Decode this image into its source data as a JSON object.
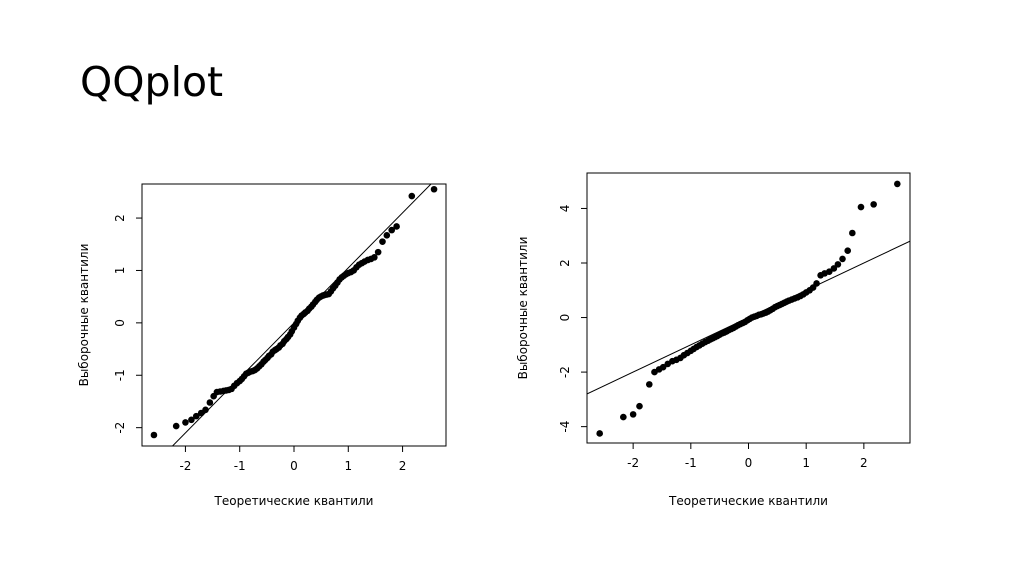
{
  "slide": {
    "title": "QQplot"
  },
  "chart_data": [
    {
      "type": "scatter",
      "title": "",
      "xlabel": "Теоретические квантили",
      "ylabel": "Выборочные квантили",
      "xlim": [
        -2.8,
        2.8
      ],
      "ylim": [
        -2.35,
        2.65
      ],
      "xticks": [
        "-2",
        "-1",
        "0",
        "1",
        "2"
      ],
      "yticks": [
        "-2",
        "-1",
        "0",
        "1",
        "2"
      ],
      "grid": false,
      "reference_line": {
        "slope": 1.05,
        "intercept": 0.0
      },
      "points": [
        [
          -2.58,
          -2.14
        ],
        [
          -2.17,
          -1.97
        ],
        [
          -2.0,
          -1.9
        ],
        [
          -1.89,
          -1.85
        ],
        [
          -1.8,
          -1.78
        ],
        [
          -1.71,
          -1.72
        ],
        [
          -1.63,
          -1.66
        ],
        [
          -1.55,
          -1.52
        ],
        [
          -1.48,
          -1.4
        ],
        [
          -1.42,
          -1.32
        ],
        [
          -1.36,
          -1.31
        ],
        [
          -1.3,
          -1.3
        ],
        [
          -1.25,
          -1.29
        ],
        [
          -1.2,
          -1.28
        ],
        [
          -1.15,
          -1.26
        ],
        [
          -1.1,
          -1.2
        ],
        [
          -1.05,
          -1.15
        ],
        [
          -1.0,
          -1.11
        ],
        [
          -0.96,
          -1.07
        ],
        [
          -0.92,
          -1.02
        ],
        [
          -0.88,
          -0.97
        ],
        [
          -0.84,
          -0.95
        ],
        [
          -0.8,
          -0.93
        ],
        [
          -0.76,
          -0.92
        ],
        [
          -0.72,
          -0.9
        ],
        [
          -0.68,
          -0.87
        ],
        [
          -0.64,
          -0.83
        ],
        [
          -0.6,
          -0.79
        ],
        [
          -0.56,
          -0.74
        ],
        [
          -0.53,
          -0.71
        ],
        [
          -0.49,
          -0.67
        ],
        [
          -0.46,
          -0.63
        ],
        [
          -0.42,
          -0.6
        ],
        [
          -0.39,
          -0.55
        ],
        [
          -0.35,
          -0.52
        ],
        [
          -0.32,
          -0.5
        ],
        [
          -0.28,
          -0.47
        ],
        [
          -0.25,
          -0.43
        ],
        [
          -0.21,
          -0.4
        ],
        [
          -0.18,
          -0.35
        ],
        [
          -0.14,
          -0.31
        ],
        [
          -0.11,
          -0.27
        ],
        [
          -0.07,
          -0.22
        ],
        [
          -0.04,
          -0.16
        ],
        [
          0.0,
          -0.09
        ],
        [
          0.04,
          -0.02
        ],
        [
          0.07,
          0.04
        ],
        [
          0.11,
          0.1
        ],
        [
          0.14,
          0.14
        ],
        [
          0.18,
          0.17
        ],
        [
          0.21,
          0.2
        ],
        [
          0.25,
          0.23
        ],
        [
          0.28,
          0.27
        ],
        [
          0.32,
          0.31
        ],
        [
          0.35,
          0.35
        ],
        [
          0.39,
          0.4
        ],
        [
          0.42,
          0.44
        ],
        [
          0.46,
          0.48
        ],
        [
          0.49,
          0.5
        ],
        [
          0.53,
          0.52
        ],
        [
          0.56,
          0.53
        ],
        [
          0.6,
          0.54
        ],
        [
          0.64,
          0.55
        ],
        [
          0.68,
          0.6
        ],
        [
          0.72,
          0.66
        ],
        [
          0.76,
          0.71
        ],
        [
          0.8,
          0.77
        ],
        [
          0.84,
          0.83
        ],
        [
          0.88,
          0.87
        ],
        [
          0.92,
          0.9
        ],
        [
          0.96,
          0.93
        ],
        [
          1.0,
          0.95
        ],
        [
          1.05,
          0.97
        ],
        [
          1.1,
          1.0
        ],
        [
          1.15,
          1.06
        ],
        [
          1.2,
          1.11
        ],
        [
          1.25,
          1.14
        ],
        [
          1.3,
          1.17
        ],
        [
          1.36,
          1.2
        ],
        [
          1.42,
          1.22
        ],
        [
          1.48,
          1.25
        ],
        [
          1.55,
          1.35
        ],
        [
          1.63,
          1.55
        ],
        [
          1.71,
          1.67
        ],
        [
          1.8,
          1.77
        ],
        [
          1.89,
          1.84
        ],
        [
          2.17,
          2.42
        ],
        [
          2.58,
          2.55
        ]
      ]
    },
    {
      "type": "scatter",
      "title": "",
      "xlabel": "Теоретические квантили",
      "ylabel": "Выборочные квантили",
      "xlim": [
        -2.8,
        2.8
      ],
      "ylim": [
        -4.6,
        5.3
      ],
      "xticks": [
        "-2",
        "-1",
        "0",
        "1",
        "2"
      ],
      "yticks": [
        "-4",
        "-2",
        "0",
        "2",
        "4"
      ],
      "grid": false,
      "reference_line": {
        "slope": 1.0,
        "intercept": 0.0
      },
      "points": [
        [
          -2.58,
          -4.25
        ],
        [
          -2.17,
          -3.65
        ],
        [
          -2.0,
          -3.55
        ],
        [
          -1.89,
          -3.25
        ],
        [
          -1.72,
          -2.45
        ],
        [
          -1.63,
          -2.0
        ],
        [
          -1.55,
          -1.9
        ],
        [
          -1.48,
          -1.82
        ],
        [
          -1.4,
          -1.7
        ],
        [
          -1.32,
          -1.6
        ],
        [
          -1.25,
          -1.55
        ],
        [
          -1.18,
          -1.48
        ],
        [
          -1.12,
          -1.38
        ],
        [
          -1.06,
          -1.3
        ],
        [
          -1.0,
          -1.22
        ],
        [
          -0.95,
          -1.15
        ],
        [
          -0.9,
          -1.08
        ],
        [
          -0.85,
          -1.02
        ],
        [
          -0.8,
          -0.96
        ],
        [
          -0.75,
          -0.9
        ],
        [
          -0.7,
          -0.85
        ],
        [
          -0.66,
          -0.8
        ],
        [
          -0.62,
          -0.76
        ],
        [
          -0.58,
          -0.72
        ],
        [
          -0.54,
          -0.68
        ],
        [
          -0.5,
          -0.63
        ],
        [
          -0.46,
          -0.58
        ],
        [
          -0.42,
          -0.55
        ],
        [
          -0.38,
          -0.51
        ],
        [
          -0.34,
          -0.46
        ],
        [
          -0.3,
          -0.42
        ],
        [
          -0.26,
          -0.38
        ],
        [
          -0.22,
          -0.33
        ],
        [
          -0.18,
          -0.28
        ],
        [
          -0.14,
          -0.24
        ],
        [
          -0.1,
          -0.2
        ],
        [
          -0.06,
          -0.16
        ],
        [
          -0.02,
          -0.1
        ],
        [
          0.02,
          -0.05
        ],
        [
          0.06,
          0.0
        ],
        [
          0.1,
          0.03
        ],
        [
          0.14,
          0.06
        ],
        [
          0.18,
          0.1
        ],
        [
          0.22,
          0.12
        ],
        [
          0.26,
          0.15
        ],
        [
          0.3,
          0.18
        ],
        [
          0.34,
          0.22
        ],
        [
          0.38,
          0.27
        ],
        [
          0.42,
          0.32
        ],
        [
          0.46,
          0.38
        ],
        [
          0.5,
          0.42
        ],
        [
          0.54,
          0.46
        ],
        [
          0.58,
          0.5
        ],
        [
          0.62,
          0.54
        ],
        [
          0.66,
          0.58
        ],
        [
          0.7,
          0.62
        ],
        [
          0.75,
          0.66
        ],
        [
          0.8,
          0.7
        ],
        [
          0.85,
          0.74
        ],
        [
          0.9,
          0.79
        ],
        [
          0.95,
          0.85
        ],
        [
          1.0,
          0.92
        ],
        [
          1.06,
          1.0
        ],
        [
          1.12,
          1.1
        ],
        [
          1.18,
          1.25
        ],
        [
          1.25,
          1.55
        ],
        [
          1.32,
          1.62
        ],
        [
          1.4,
          1.68
        ],
        [
          1.48,
          1.8
        ],
        [
          1.55,
          1.95
        ],
        [
          1.63,
          2.15
        ],
        [
          1.72,
          2.45
        ],
        [
          1.8,
          3.1
        ],
        [
          1.95,
          4.05
        ],
        [
          2.17,
          4.15
        ],
        [
          2.58,
          4.9
        ]
      ]
    }
  ]
}
